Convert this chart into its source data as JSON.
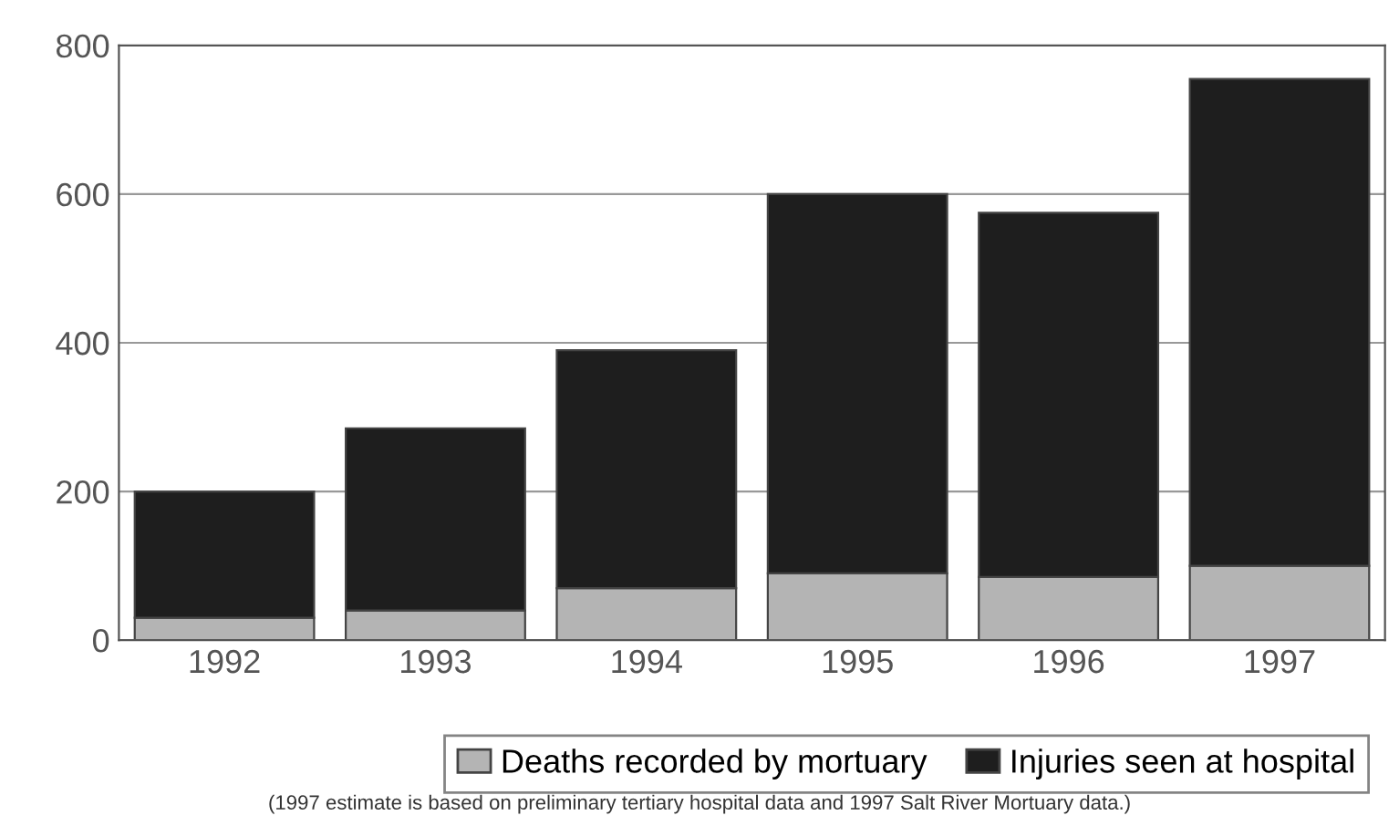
{
  "chart_data": {
    "type": "bar",
    "stacked": true,
    "categories": [
      "1992",
      "1993",
      "1994",
      "1995",
      "1996",
      "1997"
    ],
    "series": [
      {
        "name": "Deaths recorded by mortuary",
        "color": "#b4b4b4",
        "values": [
          30,
          40,
          70,
          90,
          85,
          100
        ]
      },
      {
        "name": "Injuries seen at hospital",
        "color": "#1e1e1e",
        "values": [
          170,
          245,
          320,
          510,
          490,
          655
        ]
      }
    ],
    "ylim": [
      0,
      800
    ],
    "yticks": [
      0,
      200,
      400,
      600,
      800
    ],
    "grid": "y",
    "legend": "bottom right",
    "annotations": [
      "(1997 estimate is based on preliminary tertiary hospital data and 1997 Salt River Mortuary data.)"
    ]
  }
}
